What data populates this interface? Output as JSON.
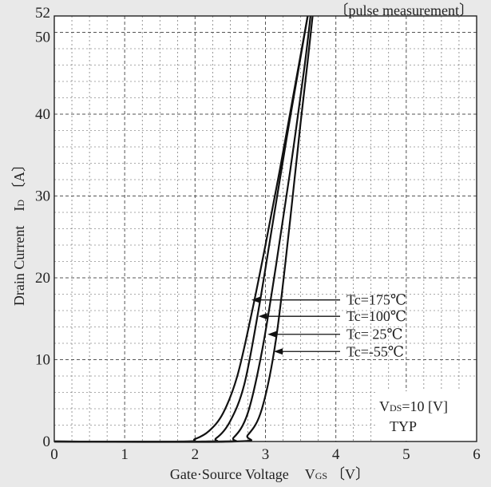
{
  "chart_data": {
    "type": "line",
    "note": "〔pulse measurement〕",
    "xlabel": {
      "main": "Gate·Source Voltage",
      "sym": "V",
      "sub": "GS",
      "unit": "〔V〕"
    },
    "ylabel": {
      "main": "Drain Current",
      "sym": "I",
      "sub": "D",
      "unit": "〔A〕"
    },
    "xlim": [
      0,
      6
    ],
    "ylim": [
      0,
      52
    ],
    "x_ticks": [
      0,
      1,
      2,
      3,
      4,
      5,
      6
    ],
    "y_ticks": [
      0,
      10,
      20,
      30,
      40,
      50,
      52
    ],
    "grid": true,
    "conditions": {
      "vds_sym": "V",
      "vds_sub": "DS",
      "vds_value": "=10 [V]",
      "typ": "TYP"
    },
    "series": [
      {
        "name": "Tc=175℃",
        "color": "#111111",
        "x": [
          0,
          1.8,
          2.0,
          2.2,
          2.4,
          2.6,
          2.8,
          3.0,
          3.2,
          3.4,
          3.6
        ],
        "y": [
          0,
          0,
          0.3,
          1.3,
          3.5,
          8.0,
          15.5,
          24.0,
          33.0,
          42.5,
          52
        ]
      },
      {
        "name": "Tc=100℃",
        "color": "#111111",
        "x": [
          0,
          2.1,
          2.3,
          2.5,
          2.7,
          2.9,
          3.1,
          3.3,
          3.5,
          3.6
        ],
        "y": [
          0,
          0,
          0.4,
          2.5,
          7.0,
          16.0,
          26.5,
          37.0,
          47.0,
          52
        ]
      },
      {
        "name": "Tc= 25℃",
        "color": "#111111",
        "x": [
          0,
          2.35,
          2.55,
          2.75,
          2.95,
          3.15,
          3.35,
          3.55,
          3.64
        ],
        "y": [
          0,
          0,
          0.5,
          3.5,
          11.0,
          21.5,
          33.0,
          45.5,
          52
        ]
      },
      {
        "name": "Tc=-55℃",
        "color": "#111111",
        "x": [
          0,
          2.55,
          2.75,
          2.95,
          3.15,
          3.35,
          3.5,
          3.6,
          3.67
        ],
        "y": [
          0,
          0,
          0.8,
          4.0,
          12.5,
          27.0,
          39.0,
          46.5,
          52
        ]
      }
    ],
    "annotations": [
      {
        "label": "Tc=175℃",
        "point": [
          2.8,
          17.3
        ]
      },
      {
        "label": "Tc=100℃",
        "point": [
          2.9,
          15.3
        ]
      },
      {
        "label": "Tc= 25℃",
        "point": [
          3.03,
          13.1
        ]
      },
      {
        "label": "Tc=-55℃",
        "point": [
          3.12,
          11.0
        ]
      }
    ],
    "legend_placement": "inline arrows, right"
  }
}
